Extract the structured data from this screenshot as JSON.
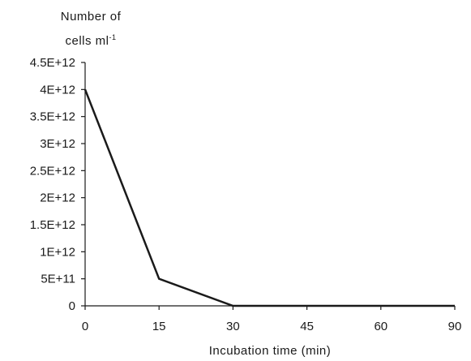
{
  "chart_data": {
    "type": "line",
    "title": "",
    "ylabel_line1": "Number of",
    "ylabel_line2": "cells ml",
    "ylabel_superscript": "-1",
    "xlabel": "Incubation time (min)",
    "x_ticks": [
      0,
      15,
      30,
      45,
      60,
      90
    ],
    "x_tick_labels": [
      "0",
      "15",
      "30",
      "45",
      "60",
      "90"
    ],
    "y_ticks": [
      0,
      500000000000,
      1000000000000,
      1500000000000,
      2000000000000,
      2500000000000,
      3000000000000,
      3500000000000,
      4000000000000,
      4500000000000
    ],
    "y_tick_labels": [
      "0",
      "5E+11",
      "1E+12",
      "1.5E+12",
      "2E+12",
      "2.5E+12",
      "3E+12",
      "3.5E+12",
      "4E+12",
      "4.5E+12"
    ],
    "ylim": [
      0,
      4500000000000
    ],
    "grid": false,
    "series": [
      {
        "x": [
          0,
          15,
          30,
          45,
          60,
          90
        ],
        "y": [
          4000000000000,
          500000000000,
          0,
          0,
          0,
          0
        ],
        "color": "#1a1a1a"
      }
    ]
  }
}
